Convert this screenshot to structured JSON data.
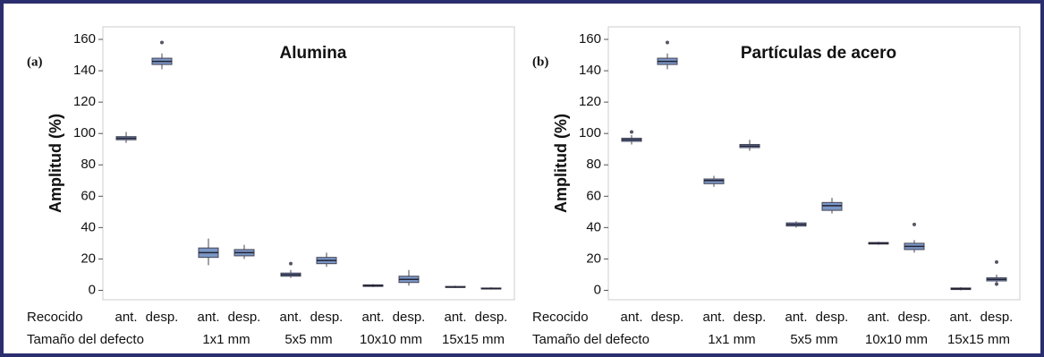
{
  "chart_data": [
    {
      "type": "box",
      "panel_label": "(a)",
      "title": "Alumina",
      "ylabel": "Amplitud (%)",
      "row_labels": [
        "Recocido",
        "Tamaño del defecto"
      ],
      "categories": [
        "ant.",
        "desp.",
        "ant.",
        "desp.",
        "ant.",
        "desp.",
        "ant.",
        "desp.",
        "ant.",
        "desp."
      ],
      "groups": [
        null,
        "1x1 mm",
        "5x5 mm",
        "10x10 mm",
        "15x15 mm"
      ],
      "boxes": [
        {
          "whislo": 94,
          "q1": 96,
          "med": 97,
          "q3": 98,
          "whishi": 101,
          "fliers": []
        },
        {
          "whislo": 141,
          "q1": 144,
          "med": 146,
          "q3": 148,
          "whishi": 151,
          "fliers": [
            158
          ]
        },
        {
          "whislo": 16,
          "q1": 21,
          "med": 24,
          "q3": 27,
          "whishi": 33,
          "fliers": []
        },
        {
          "whislo": 20,
          "q1": 22,
          "med": 24,
          "q3": 26,
          "whishi": 29,
          "fliers": []
        },
        {
          "whislo": 8,
          "q1": 9,
          "med": 10,
          "q3": 11,
          "whishi": 13,
          "fliers": [
            17
          ]
        },
        {
          "whislo": 15,
          "q1": 17,
          "med": 19,
          "q3": 21,
          "whishi": 24,
          "fliers": []
        },
        {
          "whislo": 2,
          "q1": 2.5,
          "med": 3,
          "q3": 3.5,
          "whishi": 4,
          "fliers": []
        },
        {
          "whislo": 3,
          "q1": 5,
          "med": 7,
          "q3": 9,
          "whishi": 13,
          "fliers": []
        },
        {
          "whislo": 1.5,
          "q1": 2,
          "med": 2,
          "q3": 2.5,
          "whishi": 3,
          "fliers": []
        },
        {
          "whislo": 0.5,
          "q1": 1,
          "med": 1,
          "q3": 1.5,
          "whishi": 2,
          "fliers": []
        }
      ],
      "ylim": [
        -6,
        168
      ],
      "yticks": [
        0,
        20,
        40,
        60,
        80,
        100,
        120,
        140,
        160
      ],
      "color": "#7b97c6"
    },
    {
      "type": "box",
      "panel_label": "(b)",
      "title": "Partículas de acero",
      "ylabel": "Amplitud (%)",
      "row_labels": [
        "Recocido",
        "Tamaño del defecto"
      ],
      "categories": [
        "ant.",
        "desp.",
        "ant.",
        "desp.",
        "ant.",
        "desp.",
        "ant.",
        "desp.",
        "ant.",
        "desp."
      ],
      "groups": [
        null,
        "1x1 mm",
        "5x5 mm",
        "10x10 mm",
        "15x15 mm"
      ],
      "boxes": [
        {
          "whislo": 93,
          "q1": 95,
          "med": 96,
          "q3": 97,
          "whishi": 99,
          "fliers": [
            101
          ]
        },
        {
          "whislo": 141,
          "q1": 144,
          "med": 146,
          "q3": 148,
          "whishi": 151,
          "fliers": [
            158
          ]
        },
        {
          "whislo": 66,
          "q1": 68,
          "med": 70,
          "q3": 71,
          "whishi": 73,
          "fliers": []
        },
        {
          "whislo": 89,
          "q1": 91,
          "med": 92,
          "q3": 93,
          "whishi": 96,
          "fliers": []
        },
        {
          "whislo": 40,
          "q1": 41,
          "med": 42,
          "q3": 43,
          "whishi": 44,
          "fliers": []
        },
        {
          "whislo": 49,
          "q1": 51,
          "med": 54,
          "q3": 56,
          "whishi": 59,
          "fliers": []
        },
        {
          "whislo": 29,
          "q1": 29.5,
          "med": 30,
          "q3": 30.5,
          "whishi": 31,
          "fliers": []
        },
        {
          "whislo": 24,
          "q1": 26,
          "med": 28,
          "q3": 30,
          "whishi": 32,
          "fliers": [
            42
          ]
        },
        {
          "whislo": 0,
          "q1": 0.5,
          "med": 1,
          "q3": 1.5,
          "whishi": 2,
          "fliers": []
        },
        {
          "whislo": 5,
          "q1": 6,
          "med": 7,
          "q3": 8,
          "whishi": 10,
          "fliers": [
            18,
            4
          ]
        }
      ],
      "ylim": [
        -6,
        168
      ],
      "yticks": [
        0,
        20,
        40,
        60,
        80,
        100,
        120,
        140,
        160
      ],
      "color": "#7b97c6"
    }
  ]
}
